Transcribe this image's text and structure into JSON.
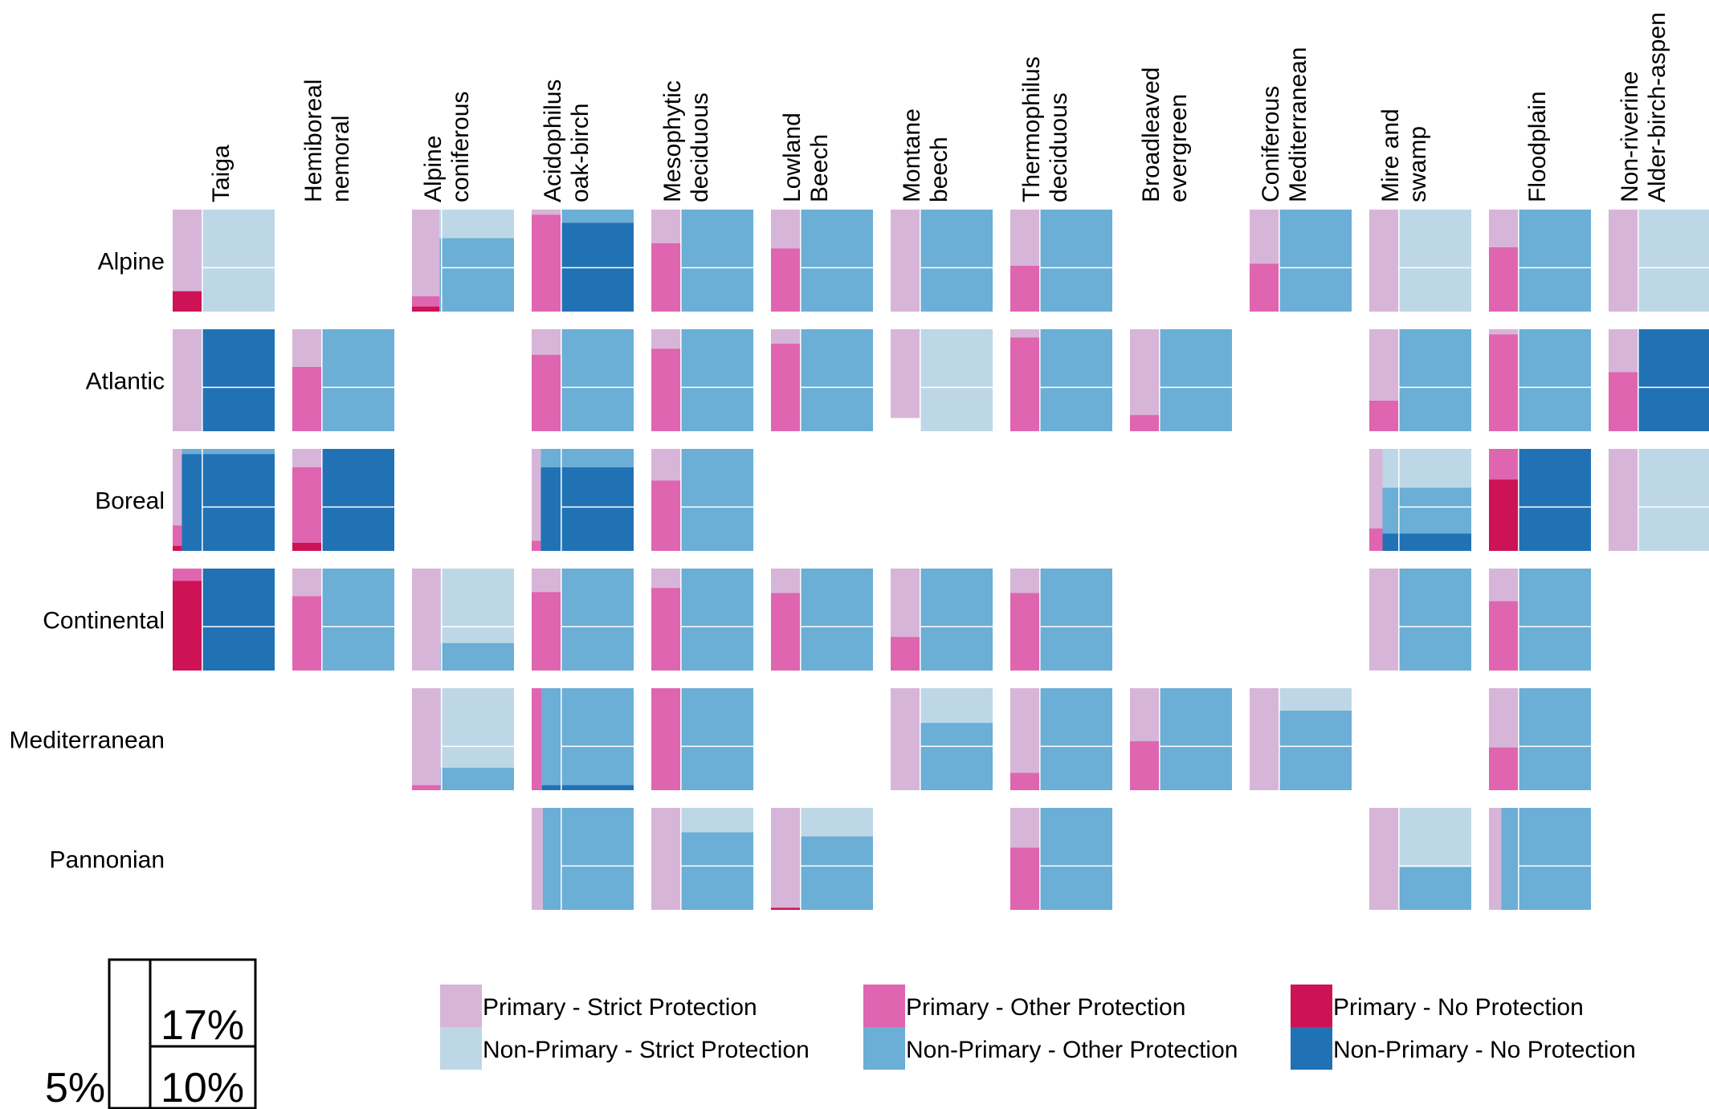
{
  "chart_data": {
    "type": "mosaic",
    "title": "",
    "xlabel": "",
    "ylabel": "",
    "columns": [
      "Taiga",
      "Hemiboreal nemoral",
      "Alpine coniferous",
      "Acidophilus oak-birch",
      "Mesophytic deciduous",
      "Lowland Beech",
      "Montane beech",
      "Thermophilus deciduous",
      "Broadleaved evergreen",
      "Coniferous Mediterranean",
      "Mire and swamp",
      "Floodplain",
      "Non-riverine Alder-birch-aspen"
    ],
    "column_label_lines": [
      [
        "Taiga"
      ],
      [
        "Hemiboreal",
        "nemoral"
      ],
      [
        "Alpine",
        "coniferous"
      ],
      [
        "Acidophilus",
        "oak-birch"
      ],
      [
        "Mesophytic",
        "deciduous"
      ],
      [
        "Lowland",
        "Beech"
      ],
      [
        "Montane",
        "beech"
      ],
      [
        "Thermophilus",
        "deciduous"
      ],
      [
        "Broadleaved",
        "evergreen"
      ],
      [
        "Coniferous",
        "Mediterranean"
      ],
      [
        "Mire and",
        "swamp"
      ],
      [
        "Floodplain"
      ],
      [
        "Non-riverine",
        "Alder-birch-aspen"
      ]
    ],
    "rows": [
      "Alpine",
      "Atlantic",
      "Boreal",
      "Continental",
      "Mediterranean",
      "Pannonian"
    ],
    "categories": {
      "PS": "Primary - Strict Protection",
      "PO": "Primary - Other Protection",
      "PN": "Primary - No Protection",
      "NS": "Non-Primary - Strict Protection",
      "NO": "Non-Primary - Other Protection",
      "NN": "Non-Primary - No Protection"
    },
    "colors": {
      "PS": "#d7b5d8",
      "PO": "#df65b0",
      "PN": "#ce1256",
      "NS": "#bdd7e7",
      "NO": "#6baed6",
      "NN": "#2171b5"
    },
    "reference_lines_percent": {
      "primary_share": 5,
      "upper": 17,
      "lower": 10
    },
    "cells": [
      {
        "row": "Alpine",
        "col": "Taiga",
        "p": 0.29,
        "pp": [
          0.8,
          0,
          0.2
        ],
        "np": [
          1,
          0,
          0
        ]
      },
      {
        "row": "Alpine",
        "col": "Alpine coniferous",
        "p": 0.27,
        "pp": [
          0.85,
          0.1,
          0.05
        ],
        "np": [
          0.28,
          0.72,
          0
        ]
      },
      {
        "row": "Alpine",
        "col": "Acidophilus oak-birch",
        "p": 0.29,
        "pp": [
          0.05,
          0.95,
          0
        ],
        "np": [
          0,
          0.13,
          0.87
        ]
      },
      {
        "row": "Alpine",
        "col": "Mesophytic deciduous",
        "p": 0.29,
        "pp": [
          0.33,
          0.67,
          0
        ],
        "np": [
          0,
          1,
          0
        ]
      },
      {
        "row": "Alpine",
        "col": "Lowland Beech",
        "p": 0.29,
        "pp": [
          0.38,
          0.62,
          0
        ],
        "np": [
          0,
          1,
          0
        ]
      },
      {
        "row": "Alpine",
        "col": "Montane beech",
        "p": 0.29,
        "pp": [
          1,
          0,
          0
        ],
        "np": [
          0,
          1,
          0
        ]
      },
      {
        "row": "Alpine",
        "col": "Thermophilus deciduous",
        "p": 0.29,
        "pp": [
          0.55,
          0.45,
          0
        ],
        "np": [
          0,
          1,
          0
        ]
      },
      {
        "row": "Alpine",
        "col": "Coniferous Mediterranean",
        "p": 0.29,
        "pp": [
          0.53,
          0.47,
          0
        ],
        "np": [
          0,
          1,
          0
        ]
      },
      {
        "row": "Alpine",
        "col": "Mire and swamp",
        "p": 0.29,
        "pp": [
          1,
          0,
          0
        ],
        "np": [
          1,
          0,
          0
        ]
      },
      {
        "row": "Alpine",
        "col": "Floodplain",
        "p": 0.29,
        "pp": [
          0.37,
          0.63,
          0
        ],
        "np": [
          0,
          1,
          0
        ]
      },
      {
        "row": "Alpine",
        "col": "Non-riverine Alder-birch-aspen",
        "p": 0.29,
        "pp": [
          1,
          0,
          0
        ],
        "np": [
          1,
          0,
          0
        ]
      },
      {
        "row": "Atlantic",
        "col": "Taiga",
        "p": 0.29,
        "pp": [
          1,
          0,
          0
        ],
        "np": [
          0,
          0,
          1
        ]
      },
      {
        "row": "Atlantic",
        "col": "Hemiboreal nemoral",
        "p": 0.29,
        "pp": [
          0.37,
          0.63,
          0
        ],
        "np": [
          0,
          1,
          0
        ]
      },
      {
        "row": "Atlantic",
        "col": "Acidophilus oak-birch",
        "p": 0.29,
        "pp": [
          0.25,
          0.75,
          0
        ],
        "np": [
          0,
          1,
          0
        ]
      },
      {
        "row": "Atlantic",
        "col": "Mesophytic deciduous",
        "p": 0.29,
        "pp": [
          0.19,
          0.81,
          0
        ],
        "np": [
          0,
          1,
          0
        ]
      },
      {
        "row": "Atlantic",
        "col": "Lowland Beech",
        "p": 0.29,
        "pp": [
          0.14,
          0.86,
          0
        ],
        "np": [
          0,
          1,
          0
        ]
      },
      {
        "row": "Atlantic",
        "col": "Montane beech",
        "p": 0.29,
        "pp": [
          0.87,
          0,
          0
        ],
        "np": [
          1,
          0,
          0
        ]
      },
      {
        "row": "Atlantic",
        "col": "Thermophilus deciduous",
        "p": 0.29,
        "pp": [
          0.08,
          0.92,
          0
        ],
        "np": [
          0,
          1,
          0
        ]
      },
      {
        "row": "Atlantic",
        "col": "Broadleaved evergreen",
        "p": 0.29,
        "pp": [
          0.84,
          0.16,
          0
        ],
        "np": [
          0,
          1,
          0
        ]
      },
      {
        "row": "Atlantic",
        "col": "Mire and swamp",
        "p": 0.29,
        "pp": [
          0.7,
          0.3,
          0
        ],
        "np": [
          0,
          1,
          0
        ]
      },
      {
        "row": "Atlantic",
        "col": "Floodplain",
        "p": 0.29,
        "pp": [
          0.05,
          0.95,
          0
        ],
        "np": [
          0,
          1,
          0
        ]
      },
      {
        "row": "Atlantic",
        "col": "Non-riverine Alder-birch-aspen",
        "p": 0.29,
        "pp": [
          0.42,
          0.58,
          0
        ],
        "np": [
          0,
          0,
          1
        ]
      },
      {
        "row": "Boreal",
        "col": "Taiga",
        "p": 0.09,
        "pp": [
          0.75,
          0.2,
          0.05
        ],
        "np": [
          0,
          0.05,
          0.95
        ]
      },
      {
        "row": "Boreal",
        "col": "Hemiboreal nemoral",
        "p": 0.29,
        "pp": [
          0.18,
          0.74,
          0.08
        ],
        "np": [
          0,
          0,
          1
        ]
      },
      {
        "row": "Boreal",
        "col": "Acidophilus oak-birch",
        "p": 0.09,
        "pp": [
          0.9,
          0.1,
          0
        ],
        "np": [
          0,
          0.18,
          0.82
        ]
      },
      {
        "row": "Boreal",
        "col": "Mesophytic deciduous",
        "p": 0.29,
        "pp": [
          0.31,
          0.69,
          0
        ],
        "np": [
          0,
          1,
          0
        ]
      },
      {
        "row": "Boreal",
        "col": "Mire and swamp",
        "p": 0.13,
        "pp": [
          0.78,
          0.22,
          0
        ],
        "np": [
          0.38,
          0.45,
          0.17
        ]
      },
      {
        "row": "Boreal",
        "col": "Floodplain",
        "p": 0.29,
        "pp": [
          0,
          0.3,
          0.7
        ],
        "np": [
          0,
          0,
          1
        ]
      },
      {
        "row": "Boreal",
        "col": "Non-riverine Alder-birch-aspen",
        "p": 0.29,
        "pp": [
          1,
          0,
          0
        ],
        "np": [
          1,
          0,
          0
        ]
      },
      {
        "row": "Continental",
        "col": "Taiga",
        "p": 0.29,
        "pp": [
          0,
          0.12,
          0.88
        ],
        "np": [
          0,
          0,
          1
        ]
      },
      {
        "row": "Continental",
        "col": "Hemiboreal nemoral",
        "p": 0.29,
        "pp": [
          0.27,
          0.73,
          0
        ],
        "np": [
          0,
          1,
          0
        ]
      },
      {
        "row": "Continental",
        "col": "Alpine coniferous",
        "p": 0.28,
        "pp": [
          1,
          0,
          0
        ],
        "np": [
          0.73,
          0.27,
          0
        ]
      },
      {
        "row": "Continental",
        "col": "Acidophilus oak-birch",
        "p": 0.29,
        "pp": [
          0.23,
          0.77,
          0
        ],
        "np": [
          0,
          1,
          0
        ]
      },
      {
        "row": "Continental",
        "col": "Mesophytic deciduous",
        "p": 0.29,
        "pp": [
          0.19,
          0.81,
          0
        ],
        "np": [
          0,
          1,
          0
        ]
      },
      {
        "row": "Continental",
        "col": "Lowland Beech",
        "p": 0.29,
        "pp": [
          0.24,
          0.76,
          0
        ],
        "np": [
          0,
          1,
          0
        ]
      },
      {
        "row": "Continental",
        "col": "Montane beech",
        "p": 0.29,
        "pp": [
          0.67,
          0.33,
          0
        ],
        "np": [
          0,
          1,
          0
        ]
      },
      {
        "row": "Continental",
        "col": "Thermophilus deciduous",
        "p": 0.29,
        "pp": [
          0.24,
          0.76,
          0
        ],
        "np": [
          0,
          1,
          0
        ]
      },
      {
        "row": "Continental",
        "col": "Mire and swamp",
        "p": 0.29,
        "pp": [
          1,
          0,
          0
        ],
        "np": [
          0,
          1,
          0
        ]
      },
      {
        "row": "Continental",
        "col": "Floodplain",
        "p": 0.29,
        "pp": [
          0.32,
          0.68,
          0
        ],
        "np": [
          0,
          1,
          0
        ]
      },
      {
        "row": "Mediterranean",
        "col": "Alpine coniferous",
        "p": 0.28,
        "pp": [
          0.95,
          0.05,
          0
        ],
        "np": [
          0.78,
          0.22,
          0
        ]
      },
      {
        "row": "Mediterranean",
        "col": "Acidophilus oak-birch",
        "p": 0.1,
        "pp": [
          0,
          1,
          0
        ],
        "np": [
          0,
          0.95,
          0.05
        ]
      },
      {
        "row": "Mediterranean",
        "col": "Mesophytic deciduous",
        "p": 0.29,
        "pp": [
          0,
          1,
          0
        ],
        "np": [
          0,
          1,
          0
        ]
      },
      {
        "row": "Mediterranean",
        "col": "Montane beech",
        "p": 0.29,
        "pp": [
          1,
          0,
          0
        ],
        "np": [
          0.34,
          0.66,
          0
        ]
      },
      {
        "row": "Mediterranean",
        "col": "Thermophilus deciduous",
        "p": 0.29,
        "pp": [
          0.83,
          0.17,
          0
        ],
        "np": [
          0,
          1,
          0
        ]
      },
      {
        "row": "Mediterranean",
        "col": "Broadleaved evergreen",
        "p": 0.29,
        "pp": [
          0.52,
          0.48,
          0
        ],
        "np": [
          0,
          1,
          0
        ]
      },
      {
        "row": "Mediterranean",
        "col": "Coniferous Mediterranean",
        "p": 0.29,
        "pp": [
          1,
          0,
          0
        ],
        "np": [
          0.22,
          0.78,
          0
        ]
      },
      {
        "row": "Mediterranean",
        "col": "Floodplain",
        "p": 0.29,
        "pp": [
          0.58,
          0.42,
          0
        ],
        "np": [
          0,
          1,
          0
        ]
      },
      {
        "row": "Pannonian",
        "col": "Acidophilus oak-birch",
        "p": 0.11,
        "pp": [
          1,
          0,
          0
        ],
        "np": [
          0,
          1,
          0
        ]
      },
      {
        "row": "Pannonian",
        "col": "Mesophytic deciduous",
        "p": 0.29,
        "pp": [
          1,
          0,
          0
        ],
        "np": [
          0.24,
          0.76,
          0
        ]
      },
      {
        "row": "Pannonian",
        "col": "Lowland Beech",
        "p": 0.29,
        "pp": [
          0.98,
          0,
          0.02
        ],
        "np": [
          0.28,
          0.72,
          0
        ]
      },
      {
        "row": "Pannonian",
        "col": "Thermophilus deciduous",
        "p": 0.29,
        "pp": [
          0.39,
          0.61,
          0
        ],
        "np": [
          0,
          1,
          0
        ]
      },
      {
        "row": "Pannonian",
        "col": "Mire and swamp",
        "p": 0.29,
        "pp": [
          1,
          0,
          0
        ],
        "np": [
          0.58,
          0.42,
          0
        ]
      },
      {
        "row": "Pannonian",
        "col": "Floodplain",
        "p": 0.12,
        "pp": [
          1,
          0,
          0
        ],
        "np": [
          0,
          1,
          0
        ]
      }
    ],
    "legend": [
      {
        "key": "PS",
        "label": "Primary - Strict Protection"
      },
      {
        "key": "PO",
        "label": "Primary - Other Protection"
      },
      {
        "key": "PN",
        "label": "Primary - No Protection"
      },
      {
        "key": "NS",
        "label": "Non-Primary - Strict Protection"
      },
      {
        "key": "NO",
        "label": "Non-Primary - Other Protection"
      },
      {
        "key": "NN",
        "label": "Non-Primary - No Protection"
      }
    ],
    "legend_placement": "bottom",
    "scale_key": {
      "left_label": "5%",
      "upper_label": "17%",
      "lower_label": "10%"
    }
  }
}
